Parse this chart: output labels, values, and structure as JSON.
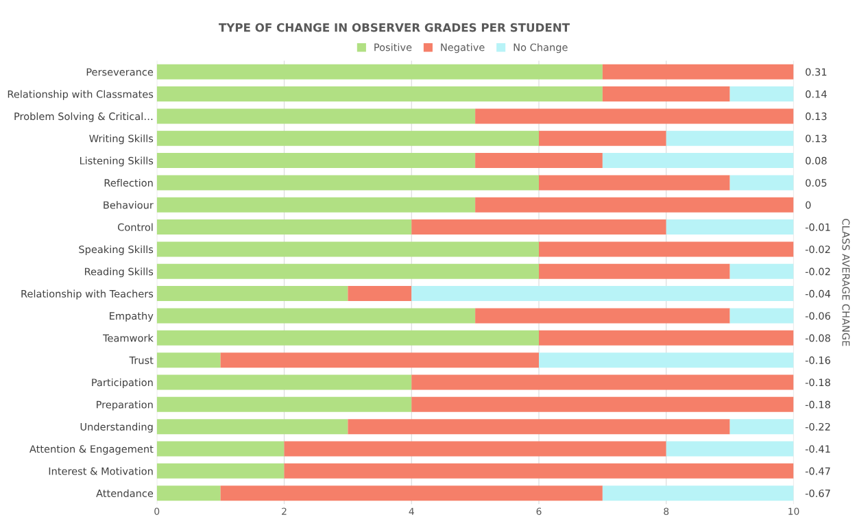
{
  "chart_data": {
    "type": "bar",
    "orientation": "horizontal",
    "stacked": true,
    "title": "TYPE OF CHANGE IN OBSERVER GRADES PER STUDENT",
    "categories": [
      "Perseverance",
      "Relationship with Classmates",
      "Problem Solving & Critical…",
      "Writing Skills",
      "Listening Skills",
      "Reflection",
      "Behaviour",
      "Control",
      "Speaking Skills",
      "Reading Skills",
      "Relationship with Teachers",
      "Empathy",
      "Teamwork",
      "Trust",
      "Participation",
      "Preparation",
      "Understanding",
      "Attention & Engagement",
      "Interest & Motivation",
      "Attendance"
    ],
    "y2_categories": [
      "0.31",
      "0.14",
      "0.13",
      "0.13",
      "0.08",
      "0.05",
      "0",
      "-0.01",
      "-0.02",
      "-0.02",
      "-0.04",
      "-0.06",
      "-0.08",
      "-0.16",
      "-0.18",
      "-0.18",
      "-0.22",
      "-0.41",
      "-0.47",
      "-0.67"
    ],
    "y2label": "CLASS AVERAGE CHANGE",
    "series": [
      {
        "name": "Positive",
        "color": "#b1e083",
        "values": [
          7,
          7,
          5,
          6,
          5,
          6,
          5,
          4,
          6,
          6,
          3,
          5,
          6,
          1,
          4,
          4,
          3,
          2,
          2,
          1
        ]
      },
      {
        "name": "Negative",
        "color": "#f57f69",
        "values": [
          3,
          2,
          5,
          2,
          2,
          3,
          5,
          4,
          4,
          3,
          1,
          4,
          4,
          5,
          6,
          6,
          6,
          6,
          8,
          6
        ]
      },
      {
        "name": "No Change",
        "color": "#b8f3f7",
        "values": [
          0,
          1,
          0,
          2,
          3,
          1,
          0,
          2,
          0,
          1,
          6,
          1,
          0,
          4,
          0,
          0,
          1,
          2,
          0,
          3
        ]
      }
    ],
    "xlim": [
      0,
      10
    ],
    "xticks": [
      0,
      2,
      4,
      6,
      8,
      10
    ],
    "grid": "x",
    "legend": "top"
  }
}
